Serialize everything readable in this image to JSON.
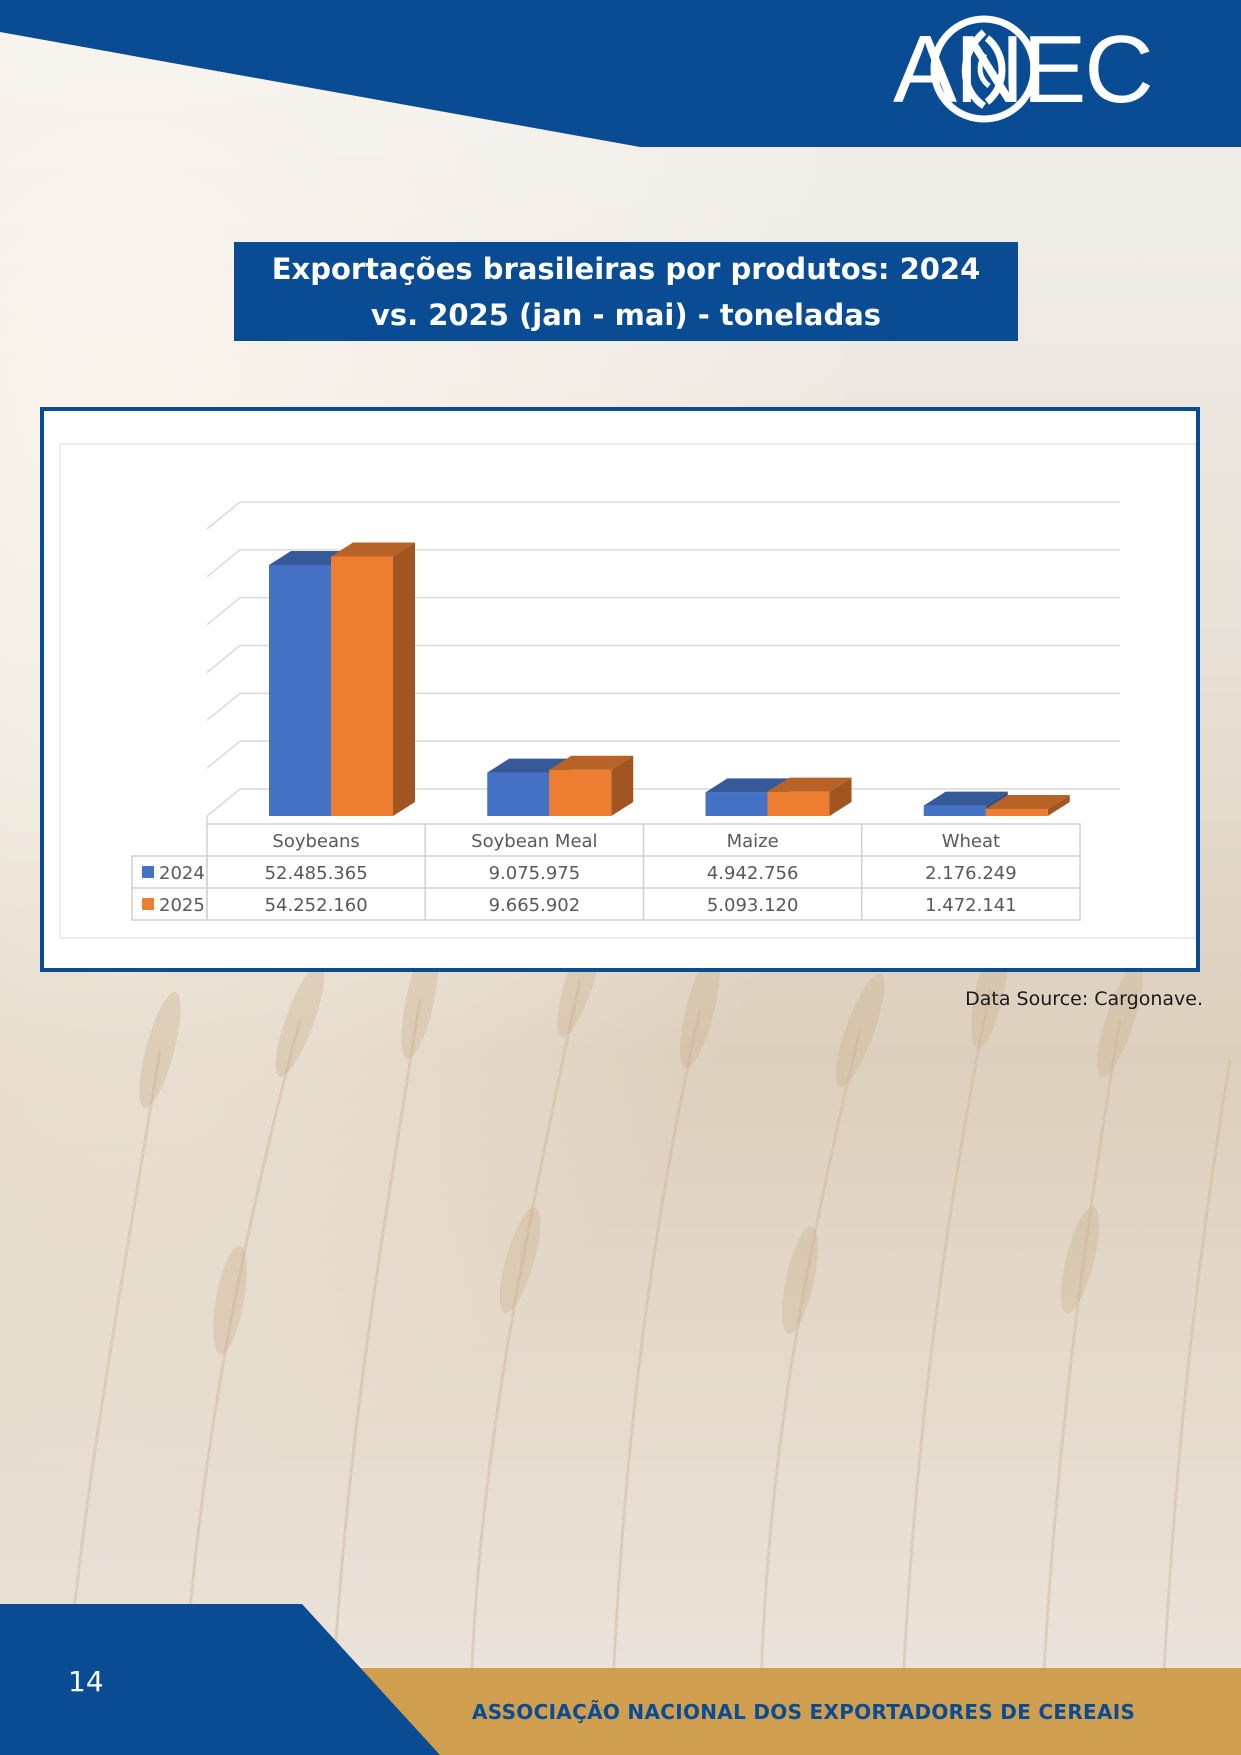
{
  "header": {
    "logo_text": "ANEC",
    "brand_color": "#0a4c93",
    "accent_color": "#cf9f4f"
  },
  "title": "Exportações brasileiras por produtos: 2024 vs. 2025 (jan - mai) - toneladas",
  "source": "Data Source: Cargonave.",
  "footer": {
    "page_number": "14",
    "organization": "ASSOCIAÇÃO NACIONAL DOS EXPORTADORES DE CEREAIS"
  },
  "chart_data": {
    "type": "bar",
    "style": "3d-clustered-column-with-data-table",
    "categories": [
      "Soybeans",
      "Soybean Meal",
      "Maize",
      "Wheat"
    ],
    "series": [
      {
        "name": "2024",
        "color": "#4472c4",
        "values": [
          52485365,
          9075975,
          4942756,
          2176249
        ],
        "labels": [
          "52.485.365",
          "9.075.975",
          "4.942.756",
          "2.176.249"
        ]
      },
      {
        "name": "2025",
        "color": "#ed7d31",
        "values": [
          54252160,
          9665902,
          5093120,
          1472141
        ],
        "labels": [
          "54.252.160",
          "9.665.902",
          "5.093.120",
          "1.472.141"
        ]
      }
    ],
    "ylim": [
      0,
      60000000
    ],
    "grid": true,
    "legend": "data-table"
  }
}
